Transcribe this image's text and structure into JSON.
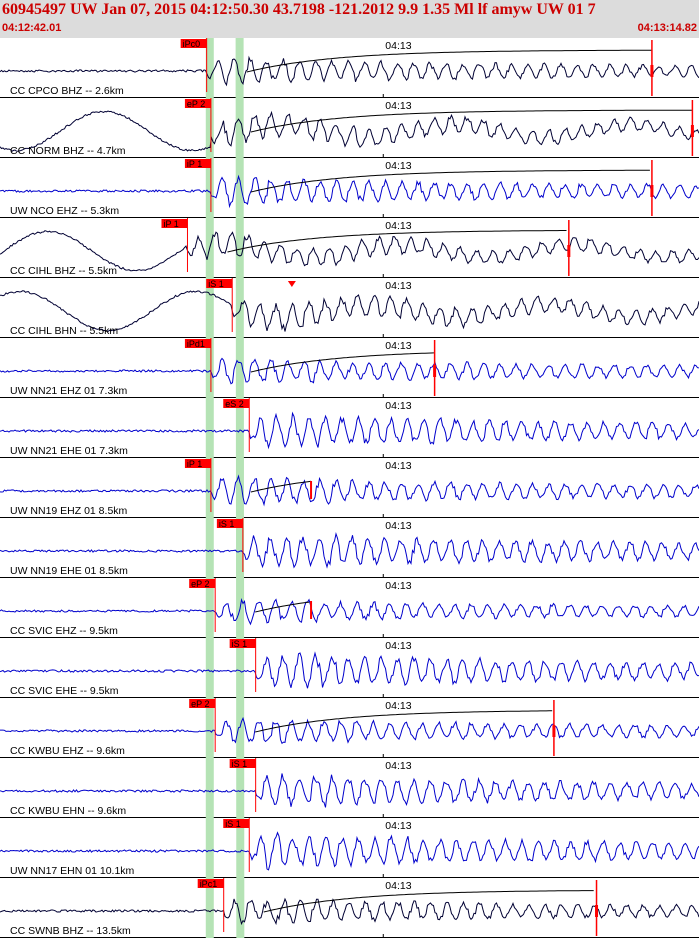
{
  "header": {
    "title": "60945497 UW Jan 07, 2015 04:12:50.30   43.7198 -121.2012  9.9 1.35 Ml lf amyw UW 01   7",
    "start_time": "04:12:42.01",
    "end_time": "04:13:14.82"
  },
  "colors": {
    "header_bg": "#dcdcdc",
    "header_text": "#cc0000",
    "pick": "#ff0000",
    "shade": "#b5e3b5",
    "wave_short_period": "#000033",
    "wave_broadband": "#0000cc"
  },
  "chart_data": {
    "type": "seismogram",
    "time_window": [
      "04:12:42.01",
      "04:13:14.82"
    ],
    "time_window_seconds": 32.81,
    "tick_label": "04:13",
    "tick_seconds": 17.99,
    "traces": [
      {
        "label": "CC CPCO BHZ -- 2.6km",
        "pick": "iPc0",
        "pick_s": 9.7,
        "color": "black",
        "amp": 0.55,
        "coda_end_s": 30.6,
        "coda_mark": "end"
      },
      {
        "label": "CC NORM BHZ -- 4.7km",
        "pick": "eP 2",
        "pick_s": 9.9,
        "color": "black",
        "amp": 0.55,
        "coda_end_s": 32.5,
        "coda_mark": "end"
      },
      {
        "label": "UW NCO EHZ -- 5.3km",
        "pick": "iP 1",
        "pick_s": 9.9,
        "color": "blue",
        "amp": 0.6,
        "coda_end_s": 30.6,
        "coda_mark": "end"
      },
      {
        "label": "CC CIHL BHZ -- 5.5km",
        "pick": "iP 1",
        "pick_s": 8.8,
        "color": "black",
        "amp": 0.55,
        "coda_end_s": 26.7,
        "coda_mark": "end"
      },
      {
        "label": "CC CIHL BHN -- 5.5km",
        "pick": "iS 1",
        "pick_s": 10.9,
        "color": "black",
        "amp": 0.6,
        "coda_end_s": null,
        "coda_mark": "triangle"
      },
      {
        "label": "UW NN21 EHZ 01 7.3km",
        "pick": "iPd1",
        "pick_s": 9.9,
        "color": "blue",
        "amp": 0.55,
        "coda_end_s": 20.4,
        "coda_mark": "end"
      },
      {
        "label": "UW NN21 EHE 01 7.3km",
        "pick": "eS 2",
        "pick_s": 11.7,
        "color": "blue",
        "amp": 0.7,
        "coda_end_s": null,
        "coda_mark": "none"
      },
      {
        "label": "UW NN19 EHZ 01 8.5km",
        "pick": "iP 1",
        "pick_s": 9.9,
        "color": "blue",
        "amp": 0.6,
        "coda_end_s": 14.6,
        "coda_mark": "plus"
      },
      {
        "label": "UW NN19 EHE 01 8.5km",
        "pick": "iS 1",
        "pick_s": 11.4,
        "color": "blue",
        "amp": 0.75,
        "coda_end_s": null,
        "coda_mark": "none"
      },
      {
        "label": "CC SVIC EHZ -- 9.5km",
        "pick": "eP 2",
        "pick_s": 10.1,
        "color": "blue",
        "amp": 0.5,
        "coda_end_s": 14.6,
        "coda_mark": "plus"
      },
      {
        "label": "CC SVIC EHE -- 9.5km",
        "pick": "iS 1",
        "pick_s": 12.0,
        "color": "blue",
        "amp": 0.75,
        "coda_end_s": null,
        "coda_mark": "none"
      },
      {
        "label": "CC KWBU EHZ -- 9.6km",
        "pick": "eP 2",
        "pick_s": 10.1,
        "color": "blue",
        "amp": 0.55,
        "coda_end_s": 26.0,
        "coda_mark": "end"
      },
      {
        "label": "CC KWBU EHN -- 9.6km",
        "pick": "iS 1",
        "pick_s": 12.0,
        "color": "blue",
        "amp": 0.7,
        "coda_end_s": null,
        "coda_mark": "none"
      },
      {
        "label": "UW NN17 EHN 01 10.1km",
        "pick": "iS 1",
        "pick_s": 11.7,
        "color": "blue",
        "amp": 0.75,
        "coda_end_s": null,
        "coda_mark": "none"
      },
      {
        "label": "CC SWNB BHZ -- 13.5km",
        "pick": "iPc1",
        "pick_s": 10.5,
        "color": "black",
        "amp": 0.55,
        "coda_end_s": 28.0,
        "coda_mark": "end"
      }
    ]
  }
}
